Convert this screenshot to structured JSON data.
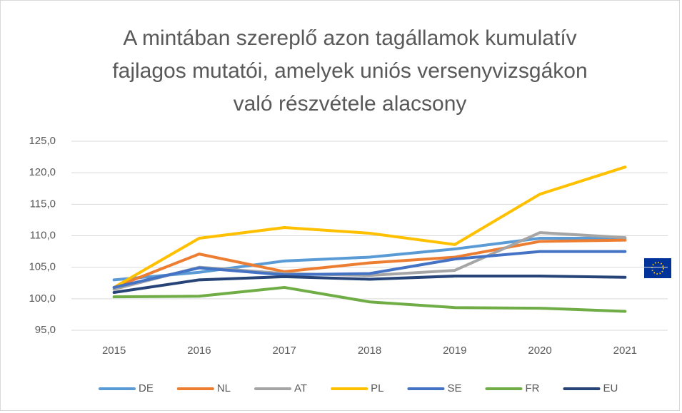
{
  "chart_data": {
    "type": "line",
    "title": [
      "A mintában szereplő azon tagállamok kumulatív",
      "fajlagos mutatói, amelyek uniós versenyvizsgákon",
      "való részvétele alacsony"
    ],
    "categories": [
      "2015",
      "2016",
      "2017",
      "2018",
      "2019",
      "2020",
      "2021"
    ],
    "series": [
      {
        "name": "DE",
        "color": "#5b9bd5",
        "values": [
          103.0,
          104.2,
          106.0,
          106.6,
          107.9,
          109.6,
          109.6
        ]
      },
      {
        "name": "NL",
        "color": "#ed7d31",
        "values": [
          101.8,
          107.1,
          104.3,
          105.7,
          106.6,
          109.1,
          109.3
        ]
      },
      {
        "name": "AT",
        "color": "#a5a5a5",
        "values": [
          101.5,
          105.0,
          104.0,
          103.7,
          104.5,
          110.5,
          109.7
        ]
      },
      {
        "name": "PL",
        "color": "#ffc000",
        "values": [
          101.8,
          109.6,
          111.3,
          110.4,
          108.6,
          116.6,
          120.9
        ]
      },
      {
        "name": "SE",
        "color": "#4472c4",
        "values": [
          101.8,
          104.9,
          103.8,
          104.0,
          106.3,
          107.5,
          107.5
        ]
      },
      {
        "name": "FR",
        "color": "#70ad47",
        "values": [
          100.3,
          100.4,
          101.8,
          99.5,
          98.6,
          98.5,
          98.0
        ]
      },
      {
        "name": "EU",
        "color": "#264478",
        "values": [
          101.0,
          103.0,
          103.5,
          103.1,
          103.6,
          103.6,
          103.4
        ]
      }
    ],
    "ylim": [
      95,
      125
    ],
    "yticks": [
      {
        "value": 95,
        "label": "95,0"
      },
      {
        "value": 100,
        "label": "100,0"
      },
      {
        "value": 105,
        "label": "105,0"
      },
      {
        "value": 110,
        "label": "110,0"
      },
      {
        "value": 115,
        "label": "115,0"
      },
      {
        "value": 120,
        "label": "120,0"
      },
      {
        "value": 125,
        "label": "125,0"
      }
    ],
    "grid": true,
    "legend": "bottom"
  }
}
